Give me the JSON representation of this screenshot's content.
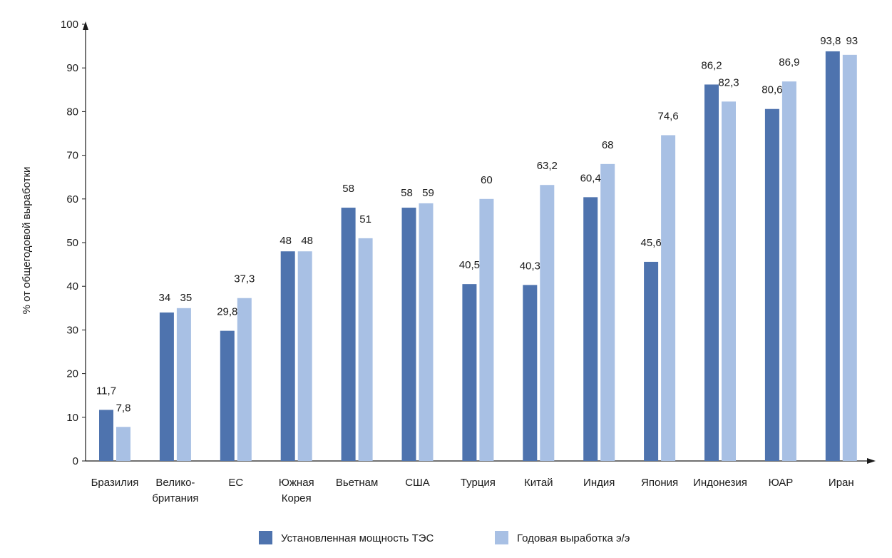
{
  "chart_data": {
    "type": "bar",
    "title": "",
    "xlabel": "",
    "ylabel": "% от общегодовой выработки",
    "ylim": [
      0,
      100
    ],
    "yticks": [
      "0",
      "10",
      "20",
      "30",
      "40",
      "50",
      "60",
      "70",
      "80",
      "90",
      "100"
    ],
    "grid": false,
    "legend_position": "bottom-center",
    "categories": [
      [
        "Бразилия"
      ],
      [
        "Велико-",
        "британия"
      ],
      [
        "ЕС"
      ],
      [
        "Южная",
        "Корея"
      ],
      [
        "Вьетнам"
      ],
      [
        "США"
      ],
      [
        "Турция"
      ],
      [
        "Китай"
      ],
      [
        "Индия"
      ],
      [
        "Япония"
      ],
      [
        "Индонезия"
      ],
      [
        "ЮАР"
      ],
      [
        "Иран"
      ]
    ],
    "series": [
      {
        "name": "Установленная мощность ТЭС",
        "color": "#4e73ae",
        "values": [
          11.7,
          34,
          29.8,
          48,
          58,
          58,
          40.5,
          40.3,
          60.4,
          45.6,
          86.2,
          80.6,
          93.8
        ],
        "labels": [
          "11,7",
          "34",
          "29,8",
          "48",
          "58",
          "58",
          "40,5",
          "40,3",
          "60,4",
          "45,6",
          "86,2",
          "80,6",
          "93,8"
        ]
      },
      {
        "name": "Годовая выработка э/э",
        "color": "#a8c0e4",
        "values": [
          7.8,
          35,
          37.3,
          48,
          51,
          59,
          60,
          63.2,
          68,
          74.6,
          82.3,
          86.9,
          93
        ],
        "labels": [
          "7,8",
          "35",
          "37,3",
          "48",
          "51",
          "59",
          "60",
          "63,2",
          "68",
          "74,6",
          "82,3",
          "86,9",
          "93"
        ]
      }
    ]
  }
}
